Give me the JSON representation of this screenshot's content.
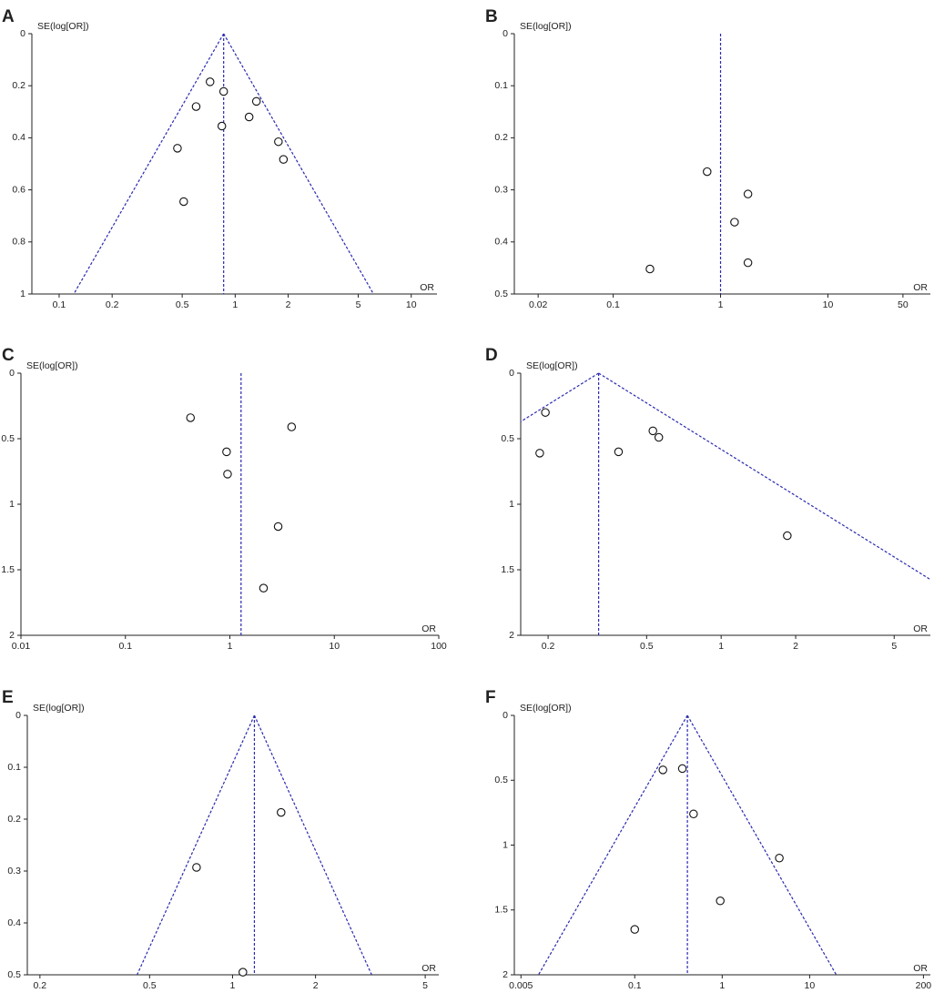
{
  "figure": {
    "colors": {
      "axis": "#222222",
      "funnel": "#2a2ab0",
      "point_fill": "#ffffff",
      "point_stroke": "#111111"
    }
  },
  "chart_data": [
    {
      "panel": "A",
      "type": "scatter",
      "x_scale": "log",
      "y_reversed": true,
      "ylabel": "SE(log[OR])",
      "xlabel": "OR",
      "xlim": [
        0.07,
        14
      ],
      "ylim": [
        0,
        1
      ],
      "x_ticks": [
        0.1,
        0.2,
        0.5,
        1,
        2,
        5,
        10
      ],
      "x_tick_labels": [
        "0.1",
        "0.2",
        "0.5",
        "1",
        "2",
        "5",
        "10"
      ],
      "y_ticks": [
        0,
        0.2,
        0.4,
        0.6,
        0.8,
        1
      ],
      "y_tick_labels": [
        "0",
        "0.2",
        "0.4",
        "0.6",
        "0.8",
        "1"
      ],
      "pooled_or": 0.86,
      "funnel": true,
      "points": [
        {
          "x": 0.72,
          "y": 0.185
        },
        {
          "x": 0.86,
          "y": 0.222
        },
        {
          "x": 0.6,
          "y": 0.28
        },
        {
          "x": 1.32,
          "y": 0.26
        },
        {
          "x": 1.2,
          "y": 0.32
        },
        {
          "x": 0.84,
          "y": 0.355
        },
        {
          "x": 1.76,
          "y": 0.415
        },
        {
          "x": 1.88,
          "y": 0.483
        },
        {
          "x": 0.47,
          "y": 0.44
        },
        {
          "x": 0.51,
          "y": 0.645
        }
      ]
    },
    {
      "panel": "B",
      "type": "scatter",
      "x_scale": "log",
      "y_reversed": true,
      "ylabel": "SE(log[OR])",
      "xlabel": "OR",
      "xlim": [
        0.012,
        90
      ],
      "ylim": [
        0,
        0.5
      ],
      "x_ticks": [
        0.02,
        0.1,
        1,
        10,
        50
      ],
      "x_tick_labels": [
        "0.02",
        "0.1",
        "1",
        "10",
        "50"
      ],
      "y_ticks": [
        0,
        0.1,
        0.2,
        0.3,
        0.4,
        0.5
      ],
      "y_tick_labels": [
        "0",
        "0.1",
        "0.2",
        "0.3",
        "0.4",
        "0.5"
      ],
      "pooled_or": 1.0,
      "funnel": false,
      "points": [
        {
          "x": 0.75,
          "y": 0.265
        },
        {
          "x": 1.8,
          "y": 0.308
        },
        {
          "x": 1.35,
          "y": 0.362
        },
        {
          "x": 1.8,
          "y": 0.44
        },
        {
          "x": 0.22,
          "y": 0.452
        }
      ]
    },
    {
      "panel": "C",
      "type": "scatter",
      "x_scale": "log",
      "y_reversed": true,
      "ylabel": "SE(log[OR])",
      "xlabel": "OR",
      "xlim": [
        0.01,
        100
      ],
      "ylim": [
        0,
        2
      ],
      "x_ticks": [
        0.01,
        0.1,
        1,
        10,
        100
      ],
      "x_tick_labels": [
        "0.01",
        "0.1",
        "1",
        "10",
        "100"
      ],
      "y_ticks": [
        0,
        0.5,
        1,
        1.5,
        2
      ],
      "y_tick_labels": [
        "0",
        "0.5",
        "1",
        "1.5",
        "2"
      ],
      "pooled_or": 1.28,
      "funnel": false,
      "points": [
        {
          "x": 0.42,
          "y": 0.34
        },
        {
          "x": 3.9,
          "y": 0.41
        },
        {
          "x": 0.93,
          "y": 0.6
        },
        {
          "x": 0.95,
          "y": 0.77
        },
        {
          "x": 2.9,
          "y": 1.17
        },
        {
          "x": 2.1,
          "y": 1.64
        }
      ]
    },
    {
      "panel": "D",
      "type": "scatter",
      "x_scale": "log",
      "y_reversed": true,
      "ylabel": "SE(log[OR])",
      "xlabel": "OR",
      "xlim": [
        0.155,
        7
      ],
      "ylim": [
        0,
        2
      ],
      "x_ticks": [
        0.2,
        0.5,
        1,
        2,
        5
      ],
      "x_tick_labels": [
        "0.2",
        "0.5",
        "1",
        "2",
        "5"
      ],
      "y_ticks": [
        0,
        0.5,
        1,
        1.5,
        2
      ],
      "y_tick_labels": [
        "0",
        "0.5",
        "1",
        "1.5",
        "2"
      ],
      "pooled_or": 0.32,
      "funnel": true,
      "points": [
        {
          "x": 0.195,
          "y": 0.3
        },
        {
          "x": 0.185,
          "y": 0.61
        },
        {
          "x": 0.385,
          "y": 0.6
        },
        {
          "x": 0.53,
          "y": 0.44
        },
        {
          "x": 0.56,
          "y": 0.49
        },
        {
          "x": 1.85,
          "y": 1.24
        }
      ]
    },
    {
      "panel": "E",
      "type": "scatter",
      "x_scale": "log",
      "y_reversed": true,
      "ylabel": "SE(log[OR])",
      "xlabel": "OR",
      "xlim": [
        0.18,
        5.6
      ],
      "ylim": [
        0,
        0.5
      ],
      "x_ticks": [
        0.2,
        0.5,
        1,
        2,
        5
      ],
      "x_tick_labels": [
        "0.2",
        "0.5",
        "1",
        "2",
        "5"
      ],
      "y_ticks": [
        0,
        0.1,
        0.2,
        0.3,
        0.4,
        0.5
      ],
      "y_tick_labels": [
        "0",
        "0.1",
        "0.2",
        "0.3",
        "0.4",
        "0.5"
      ],
      "pooled_or": 1.2,
      "funnel": true,
      "points": [
        {
          "x": 1.5,
          "y": 0.187
        },
        {
          "x": 0.74,
          "y": 0.293
        },
        {
          "x": 1.09,
          "y": 0.495
        }
      ]
    },
    {
      "panel": "F",
      "type": "scatter",
      "x_scale": "log",
      "y_reversed": true,
      "ylabel": "SE(log[OR])",
      "xlabel": "OR",
      "xlim": [
        0.0042,
        240
      ],
      "ylim": [
        0,
        2
      ],
      "x_ticks": [
        0.005,
        0.1,
        1,
        10,
        200
      ],
      "x_tick_labels": [
        "0.005",
        "0.1",
        "1",
        "10",
        "200"
      ],
      "y_ticks": [
        0,
        0.5,
        1,
        1.5,
        2
      ],
      "y_tick_labels": [
        "0",
        "0.5",
        "1",
        "1.5",
        "2"
      ],
      "pooled_or": 0.4,
      "funnel": true,
      "points": [
        {
          "x": 0.21,
          "y": 0.42
        },
        {
          "x": 0.35,
          "y": 0.41
        },
        {
          "x": 0.47,
          "y": 0.76
        },
        {
          "x": 4.5,
          "y": 1.1
        },
        {
          "x": 0.95,
          "y": 1.43
        },
        {
          "x": 0.1,
          "y": 1.65
        }
      ]
    }
  ]
}
